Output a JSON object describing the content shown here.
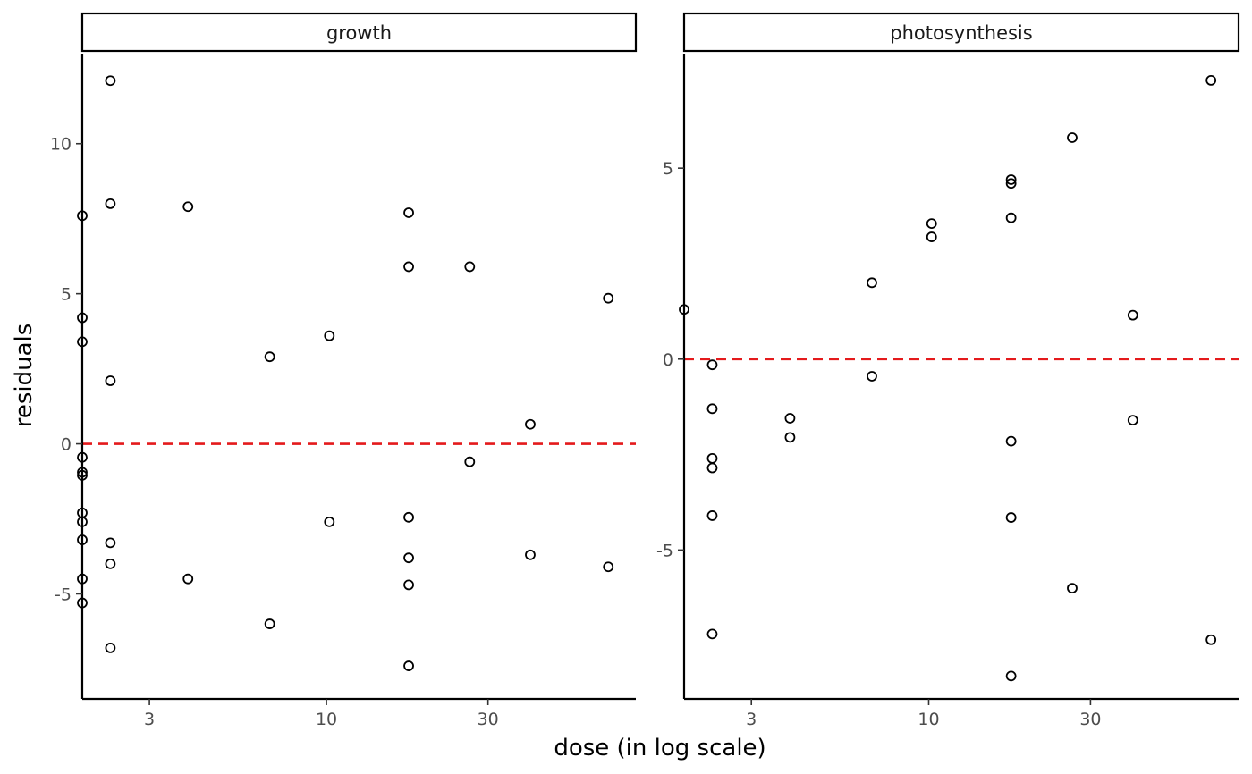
{
  "chart_data": {
    "type": "scatter",
    "xlabel": "dose (in log scale)",
    "ylabel": "residuals",
    "x_scale": "log",
    "reference_line": {
      "y": 0,
      "color": "#e41a1c",
      "style": "dashed"
    },
    "point_color": "#000000",
    "panels": [
      {
        "title": "growth",
        "xlim": [
          1.9,
          82
        ],
        "ylim": [
          -8.5,
          13.0
        ],
        "xticks": [
          3,
          10,
          30
        ],
        "xtick_labels": [
          "3",
          "10",
          "30"
        ],
        "yticks": [
          -5,
          0,
          5,
          10
        ],
        "ytick_labels": [
          "-5",
          "0",
          "5",
          "10"
        ],
        "points": [
          {
            "x": 1.9,
            "y": 7.6
          },
          {
            "x": 1.9,
            "y": 4.2
          },
          {
            "x": 1.9,
            "y": 3.4
          },
          {
            "x": 1.9,
            "y": -0.45
          },
          {
            "x": 1.9,
            "y": -0.95
          },
          {
            "x": 1.9,
            "y": -1.05
          },
          {
            "x": 1.9,
            "y": -2.3
          },
          {
            "x": 1.9,
            "y": -2.6
          },
          {
            "x": 1.9,
            "y": -3.2
          },
          {
            "x": 1.9,
            "y": -4.5
          },
          {
            "x": 1.9,
            "y": -5.3
          },
          {
            "x": 2.3,
            "y": 12.1
          },
          {
            "x": 2.3,
            "y": 8.0
          },
          {
            "x": 2.3,
            "y": 2.1
          },
          {
            "x": 2.3,
            "y": -3.3
          },
          {
            "x": 2.3,
            "y": -4.0
          },
          {
            "x": 2.3,
            "y": -6.8
          },
          {
            "x": 3.9,
            "y": 7.9
          },
          {
            "x": 3.9,
            "y": -4.5
          },
          {
            "x": 6.8,
            "y": 2.9
          },
          {
            "x": 6.8,
            "y": -6.0
          },
          {
            "x": 10.2,
            "y": 3.6
          },
          {
            "x": 10.2,
            "y": -2.6
          },
          {
            "x": 17.5,
            "y": 7.7
          },
          {
            "x": 17.5,
            "y": 5.9
          },
          {
            "x": 17.5,
            "y": -2.45
          },
          {
            "x": 17.5,
            "y": -3.8
          },
          {
            "x": 17.5,
            "y": -4.7
          },
          {
            "x": 17.5,
            "y": -7.4
          },
          {
            "x": 26.5,
            "y": 5.9
          },
          {
            "x": 26.5,
            "y": -0.6
          },
          {
            "x": 40,
            "y": 0.65
          },
          {
            "x": 40,
            "y": -3.7
          },
          {
            "x": 68,
            "y": 4.85
          },
          {
            "x": 68,
            "y": -4.1
          }
        ]
      },
      {
        "title": "photosynthesis",
        "xlim": [
          1.9,
          82
        ],
        "ylim": [
          -8.9,
          8.0
        ],
        "xticks": [
          3,
          10,
          30
        ],
        "xtick_labels": [
          "3",
          "10",
          "30"
        ],
        "yticks": [
          -5,
          0,
          5
        ],
        "ytick_labels": [
          "-5",
          "0",
          "5"
        ],
        "points": [
          {
            "x": 1.9,
            "y": 1.3
          },
          {
            "x": 2.3,
            "y": -0.15
          },
          {
            "x": 2.3,
            "y": -1.3
          },
          {
            "x": 2.3,
            "y": -2.6
          },
          {
            "x": 2.3,
            "y": -2.85
          },
          {
            "x": 2.3,
            "y": -4.1
          },
          {
            "x": 2.3,
            "y": -7.2
          },
          {
            "x": 3.9,
            "y": -1.55
          },
          {
            "x": 3.9,
            "y": -2.05
          },
          {
            "x": 6.8,
            "y": 2.0
          },
          {
            "x": 6.8,
            "y": -0.45
          },
          {
            "x": 10.2,
            "y": 3.55
          },
          {
            "x": 10.2,
            "y": 3.2
          },
          {
            "x": 17.5,
            "y": 4.7
          },
          {
            "x": 17.5,
            "y": 4.6
          },
          {
            "x": 17.5,
            "y": 3.7
          },
          {
            "x": 17.5,
            "y": -2.15
          },
          {
            "x": 17.5,
            "y": -4.15
          },
          {
            "x": 17.5,
            "y": -8.3
          },
          {
            "x": 26.5,
            "y": 5.8
          },
          {
            "x": 26.5,
            "y": -6.0
          },
          {
            "x": 40,
            "y": 1.15
          },
          {
            "x": 40,
            "y": -1.6
          },
          {
            "x": 68,
            "y": 7.3
          },
          {
            "x": 68,
            "y": -7.35
          }
        ]
      }
    ]
  }
}
